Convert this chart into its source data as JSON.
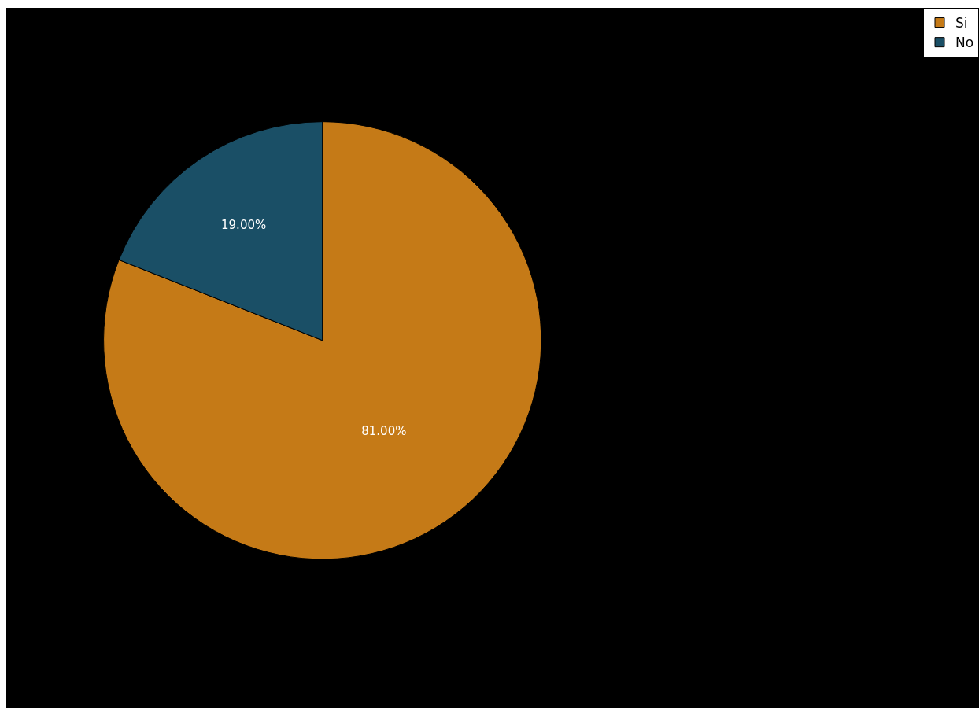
{
  "chart_data": {
    "type": "pie",
    "categories": [
      "Si",
      "No"
    ],
    "values": [
      81,
      19
    ],
    "colors": [
      "#c57a17",
      "#1a4f66"
    ],
    "value_labels": [
      "81.00%",
      "19.00%"
    ],
    "legend": "top right"
  }
}
